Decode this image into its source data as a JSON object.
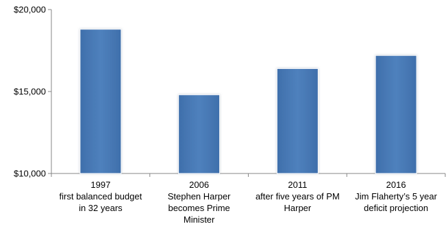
{
  "chart_data": {
    "type": "bar",
    "title": "",
    "xlabel": "",
    "ylabel": "",
    "ylim": [
      10000,
      20000
    ],
    "y_ticks": [
      10000,
      15000,
      20000
    ],
    "y_tick_labels": [
      "$10,000",
      "$15,000",
      "$20,000"
    ],
    "grid": false,
    "legend": "none",
    "bar_color": "#4F81BD",
    "categories": [
      [
        "1997",
        "first balanced budget",
        "in 32 years"
      ],
      [
        "2006",
        "Stephen Harper",
        "becomes Prime",
        "Minister"
      ],
      [
        "2011",
        "after five years of PM",
        "Harper"
      ],
      [
        "2016",
        "Jim Flaherty’s 5 year",
        "deficit projection"
      ]
    ],
    "values": [
      18800,
      14800,
      16400,
      17200
    ]
  }
}
